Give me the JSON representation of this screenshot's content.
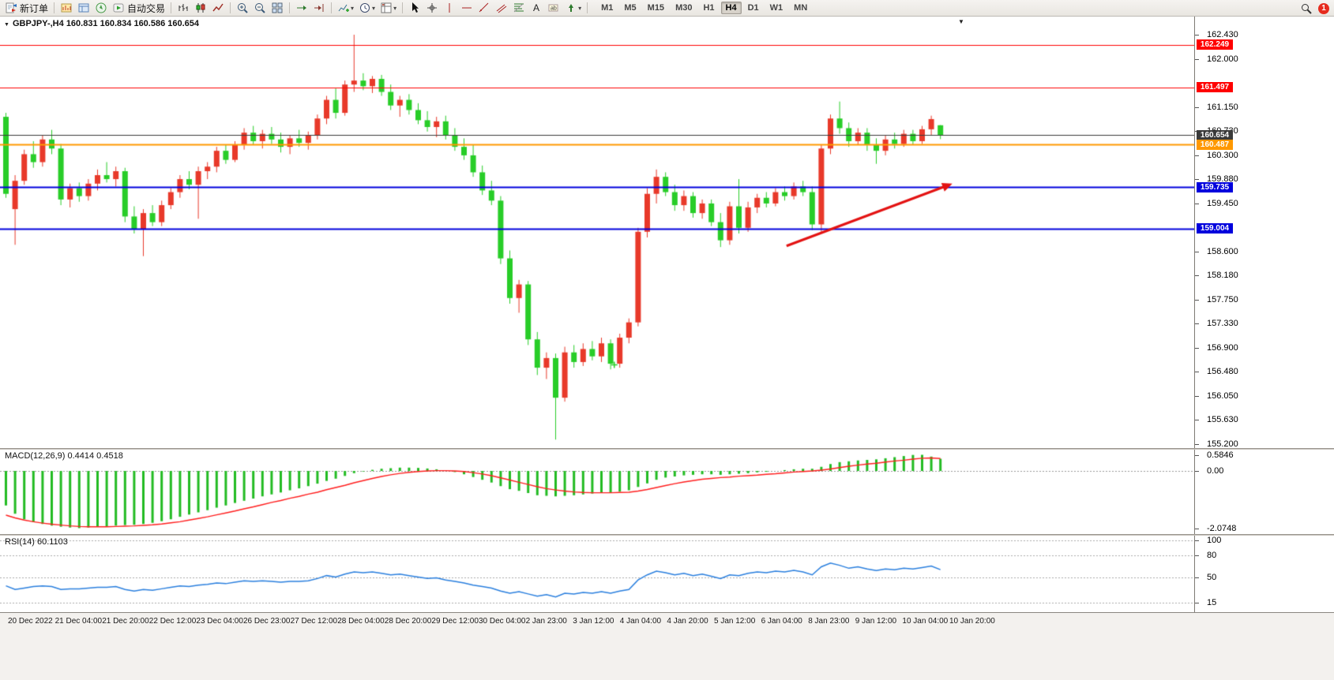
{
  "toolbar": {
    "new_order_label": "新订单",
    "auto_trading_label": "自动交易",
    "timeframes": [
      "M1",
      "M5",
      "M15",
      "M30",
      "H1",
      "H4",
      "D1",
      "W1",
      "MN"
    ],
    "active_timeframe": "H4",
    "notification_count": "1"
  },
  "chart_header": {
    "symbol_period": "GBPJPY-,H4",
    "ohlc": "160.831 160.834 160.586 160.654"
  },
  "indicators": {
    "macd_label": "MACD(12,26,9) 0.4414 0.4518",
    "rsi_label": "RSI(14) 60.1103"
  },
  "price_axis": {
    "ticks": [
      162.43,
      162.0,
      161.15,
      160.73,
      160.3,
      159.88,
      159.45,
      158.6,
      158.18,
      157.75,
      157.33,
      156.9,
      156.48,
      156.05,
      155.63,
      155.2
    ]
  },
  "time_axis": [
    "20 Dec 2022",
    "21 Dec 04:00",
    "21 Dec 20:00",
    "22 Dec 12:00",
    "23 Dec 04:00",
    "26 Dec 23:00",
    "27 Dec 12:00",
    "28 Dec 04:00",
    "28 Dec 20:00",
    "29 Dec 12:00",
    "30 Dec 04:00",
    "2 Jan 23:00",
    "3 Jan 12:00",
    "4 Jan 04:00",
    "4 Jan 20:00",
    "5 Jan 12:00",
    "6 Jan 04:00",
    "8 Jan 23:00",
    "9 Jan 12:00",
    "10 Jan 04:00",
    "10 Jan 20:00"
  ],
  "chart_data": [
    {
      "type": "candlestick",
      "title": "GBPJPY- H4",
      "symbol": "GBPJPY-",
      "period": "H4",
      "current_bar": {
        "open": 160.831,
        "high": 160.834,
        "low": 160.586,
        "close": 160.654
      },
      "ylim": [
        155.2,
        162.43
      ],
      "bull_color": "#e8392a",
      "bear_color": "#28cd28",
      "candles": [
        [
          160.98,
          161.05,
          159.55,
          159.62
        ],
        [
          159.35,
          159.95,
          158.72,
          159.85
        ],
        [
          159.85,
          160.4,
          159.78,
          160.32
        ],
        [
          160.32,
          160.55,
          160.08,
          160.18
        ],
        [
          160.18,
          160.65,
          160.1,
          160.58
        ],
        [
          160.58,
          160.75,
          160.32,
          160.42
        ],
        [
          160.42,
          160.5,
          159.42,
          159.52
        ],
        [
          159.52,
          159.8,
          159.38,
          159.72
        ],
        [
          159.72,
          159.82,
          159.48,
          159.58
        ],
        [
          159.58,
          159.88,
          159.5,
          159.8
        ],
        [
          159.8,
          160.05,
          159.68,
          159.95
        ],
        [
          159.95,
          160.18,
          159.82,
          159.88
        ],
        [
          159.88,
          160.1,
          159.75,
          160.02
        ],
        [
          160.02,
          160.08,
          159.12,
          159.22
        ],
        [
          159.22,
          159.4,
          158.92,
          159.0
        ],
        [
          159.0,
          159.35,
          158.52,
          159.28
        ],
        [
          159.28,
          159.42,
          159.05,
          159.12
        ],
        [
          159.12,
          159.5,
          159.05,
          159.42
        ],
        [
          159.42,
          159.72,
          159.35,
          159.65
        ],
        [
          159.65,
          159.95,
          159.55,
          159.88
        ],
        [
          159.88,
          160.02,
          159.7,
          159.78
        ],
        [
          159.78,
          160.1,
          159.18,
          160.02
        ],
        [
          160.02,
          160.18,
          159.88,
          160.1
        ],
        [
          160.1,
          160.45,
          160.0,
          160.38
        ],
        [
          160.38,
          160.48,
          160.15,
          160.22
        ],
        [
          160.22,
          160.55,
          160.18,
          160.48
        ],
        [
          160.48,
          160.78,
          160.4,
          160.7
        ],
        [
          160.7,
          160.82,
          160.48,
          160.55
        ],
        [
          160.55,
          160.75,
          160.42,
          160.68
        ],
        [
          160.68,
          160.8,
          160.5,
          160.58
        ],
        [
          160.58,
          160.7,
          160.35,
          160.45
        ],
        [
          160.45,
          160.65,
          160.32,
          160.6
        ],
        [
          160.6,
          160.75,
          160.45,
          160.52
        ],
        [
          160.52,
          160.72,
          160.4,
          160.65
        ],
        [
          160.65,
          161.02,
          160.58,
          160.95
        ],
        [
          160.95,
          161.35,
          160.85,
          161.28
        ],
        [
          161.28,
          161.48,
          160.95,
          161.05
        ],
        [
          161.05,
          161.62,
          161.0,
          161.55
        ],
        [
          161.55,
          162.43,
          161.42,
          161.62
        ],
        [
          161.62,
          161.75,
          161.45,
          161.52
        ],
        [
          161.52,
          161.7,
          161.4,
          161.65
        ],
        [
          161.65,
          161.72,
          161.35,
          161.42
        ],
        [
          161.42,
          161.55,
          161.1,
          161.18
        ],
        [
          161.18,
          161.35,
          160.98,
          161.28
        ],
        [
          161.28,
          161.38,
          161.02,
          161.1
        ],
        [
          161.1,
          161.22,
          160.85,
          160.92
        ],
        [
          160.92,
          161.08,
          160.72,
          160.8
        ],
        [
          160.8,
          160.98,
          160.62,
          160.9
        ],
        [
          160.9,
          161.0,
          160.58,
          160.65
        ],
        [
          160.65,
          160.78,
          160.38,
          160.45
        ],
        [
          160.45,
          160.6,
          160.22,
          160.3
        ],
        [
          160.3,
          160.48,
          159.92,
          160.0
        ],
        [
          160.0,
          160.12,
          159.6,
          159.68
        ],
        [
          159.68,
          159.85,
          159.42,
          159.5
        ],
        [
          159.5,
          159.58,
          158.38,
          158.48
        ],
        [
          158.48,
          158.62,
          157.68,
          157.78
        ],
        [
          157.78,
          158.1,
          157.52,
          158.02
        ],
        [
          158.02,
          158.08,
          156.95,
          157.05
        ],
        [
          157.05,
          157.18,
          156.42,
          156.55
        ],
        [
          156.55,
          156.82,
          156.35,
          156.72
        ],
        [
          156.72,
          156.8,
          155.28,
          156.02
        ],
        [
          156.02,
          156.92,
          155.95,
          156.82
        ],
        [
          156.82,
          156.95,
          156.55,
          156.65
        ],
        [
          156.65,
          156.98,
          156.58,
          156.88
        ],
        [
          156.88,
          157.02,
          156.68,
          156.75
        ],
        [
          156.75,
          157.08,
          156.65,
          156.98
        ],
        [
          156.98,
          157.05,
          156.52,
          156.62
        ],
        [
          156.62,
          157.15,
          156.55,
          157.08
        ],
        [
          157.08,
          157.42,
          156.98,
          157.35
        ],
        [
          157.35,
          159.02,
          157.28,
          158.95
        ],
        [
          158.95,
          159.72,
          158.85,
          159.62
        ],
        [
          159.62,
          160.05,
          159.45,
          159.92
        ],
        [
          159.92,
          160.0,
          159.58,
          159.65
        ],
        [
          159.65,
          159.78,
          159.32,
          159.42
        ],
        [
          159.42,
          159.68,
          159.32,
          159.58
        ],
        [
          159.58,
          159.65,
          159.2,
          159.28
        ],
        [
          159.28,
          159.52,
          159.18,
          159.45
        ],
        [
          159.45,
          159.52,
          159.05,
          159.12
        ],
        [
          159.12,
          159.28,
          158.68,
          158.8
        ],
        [
          158.8,
          159.48,
          158.72,
          159.4
        ],
        [
          159.4,
          159.88,
          158.92,
          159.02
        ],
        [
          159.02,
          159.48,
          158.95,
          159.38
        ],
        [
          159.38,
          159.62,
          159.28,
          159.55
        ],
        [
          159.55,
          159.65,
          159.38,
          159.45
        ],
        [
          159.45,
          159.72,
          159.4,
          159.65
        ],
        [
          159.65,
          159.75,
          159.5,
          159.58
        ],
        [
          159.58,
          159.82,
          159.52,
          159.75
        ],
        [
          159.75,
          159.85,
          159.58,
          159.65
        ],
        [
          159.65,
          159.75,
          158.98,
          159.08
        ],
        [
          159.08,
          160.48,
          158.95,
          160.42
        ],
        [
          160.42,
          161.02,
          160.32,
          160.95
        ],
        [
          160.95,
          161.25,
          160.68,
          160.78
        ],
        [
          160.78,
          160.88,
          160.45,
          160.55
        ],
        [
          160.55,
          160.78,
          160.48,
          160.7
        ],
        [
          160.7,
          160.78,
          160.38,
          160.48
        ],
        [
          160.48,
          160.6,
          160.15,
          160.38
        ],
        [
          160.38,
          160.65,
          160.3,
          160.58
        ],
        [
          160.58,
          160.7,
          160.42,
          160.5
        ],
        [
          160.5,
          160.75,
          160.45,
          160.68
        ],
        [
          160.68,
          160.75,
          160.48,
          160.55
        ],
        [
          160.55,
          160.82,
          160.5,
          160.76
        ],
        [
          160.76,
          161.0,
          160.65,
          160.94
        ],
        [
          160.831,
          160.834,
          160.586,
          160.654
        ]
      ],
      "hlines": [
        {
          "price": 162.249,
          "color": "#ff0000",
          "width": 1,
          "badge": "162.249",
          "badge_bg": "#ff0000"
        },
        {
          "price": 161.497,
          "color": "#ff0000",
          "width": 1,
          "badge": "161.497",
          "badge_bg": "#ff0000"
        },
        {
          "price": 160.654,
          "color": "#3a3a3a",
          "width": 1,
          "badge": "160.654",
          "badge_bg": "#3a3a3a"
        },
        {
          "price": 160.487,
          "color": "#ff9800",
          "width": 2,
          "badge": "160.487",
          "badge_bg": "#ff9800"
        },
        {
          "price": 159.735,
          "color": "#0000dd",
          "width": 2,
          "badge": "159.735",
          "badge_bg": "#0000dd"
        },
        {
          "price": 159.004,
          "color": "#0000dd",
          "width": 2,
          "badge": "159.004",
          "badge_bg": "#0000dd"
        }
      ],
      "trend_arrow": {
        "from_bar": 85.2,
        "from_price": 158.7,
        "to_bar": 103.3,
        "to_price": 159.8,
        "color": "#e31212"
      },
      "plus_marker": {
        "bar": 66.4,
        "price": 156.6,
        "color": "#28cd28"
      }
    },
    {
      "type": "bar",
      "name": "MACD",
      "params": "12,26,9",
      "value_main": 0.4414,
      "value_signal": 0.4518,
      "ylim": [
        -2.28,
        0.77
      ],
      "y_ticks": [
        "0.5846",
        "0.00",
        "-2.0748"
      ],
      "y_tick_values": [
        0.5846,
        0.0,
        -2.0748
      ],
      "histogram_color": "#22bb22",
      "signal_color": "#ff1e1e",
      "values": [
        -1.25,
        -1.55,
        -1.75,
        -1.85,
        -1.92,
        -1.98,
        -2.02,
        -2.05,
        -2.07,
        -2.05,
        -2.02,
        -2.0,
        -1.98,
        -1.96,
        -1.95,
        -1.92,
        -1.88,
        -1.82,
        -1.75,
        -1.66,
        -1.58,
        -1.5,
        -1.42,
        -1.33,
        -1.25,
        -1.16,
        -1.08,
        -1.0,
        -0.92,
        -0.85,
        -0.78,
        -0.7,
        -0.63,
        -0.55,
        -0.46,
        -0.36,
        -0.28,
        -0.18,
        -0.08,
        -0.02,
        0.04,
        0.08,
        0.1,
        0.12,
        0.12,
        0.11,
        0.09,
        0.06,
        0.02,
        -0.04,
        -0.12,
        -0.22,
        -0.32,
        -0.42,
        -0.55,
        -0.66,
        -0.72,
        -0.8,
        -0.88,
        -0.9,
        -0.92,
        -0.9,
        -0.88,
        -0.85,
        -0.82,
        -0.8,
        -0.78,
        -0.75,
        -0.7,
        -0.58,
        -0.45,
        -0.32,
        -0.24,
        -0.2,
        -0.16,
        -0.14,
        -0.12,
        -0.12,
        -0.14,
        -0.12,
        -0.1,
        -0.08,
        -0.05,
        -0.03,
        0.0,
        0.03,
        0.06,
        0.08,
        0.08,
        0.15,
        0.25,
        0.32,
        0.35,
        0.38,
        0.4,
        0.42,
        0.46,
        0.5,
        0.54,
        0.58,
        0.5846,
        0.52,
        0.4414
      ],
      "signal": [
        -1.6,
        -1.7,
        -1.78,
        -1.84,
        -1.89,
        -1.93,
        -1.96,
        -1.99,
        -2.01,
        -2.02,
        -2.02,
        -2.02,
        -2.01,
        -2.0,
        -1.99,
        -1.97,
        -1.95,
        -1.92,
        -1.88,
        -1.84,
        -1.78,
        -1.72,
        -1.66,
        -1.59,
        -1.52,
        -1.45,
        -1.37,
        -1.3,
        -1.22,
        -1.14,
        -1.07,
        -0.99,
        -0.92,
        -0.84,
        -0.77,
        -0.68,
        -0.6,
        -0.52,
        -0.43,
        -0.35,
        -0.27,
        -0.2,
        -0.14,
        -0.09,
        -0.05,
        -0.02,
        0.0,
        0.01,
        0.01,
        0.0,
        -0.02,
        -0.06,
        -0.11,
        -0.17,
        -0.25,
        -0.33,
        -0.41,
        -0.49,
        -0.57,
        -0.64,
        -0.69,
        -0.73,
        -0.76,
        -0.78,
        -0.79,
        -0.79,
        -0.79,
        -0.78,
        -0.77,
        -0.73,
        -0.67,
        -0.6,
        -0.53,
        -0.46,
        -0.4,
        -0.35,
        -0.3,
        -0.27,
        -0.24,
        -0.22,
        -0.19,
        -0.17,
        -0.15,
        -0.12,
        -0.1,
        -0.07,
        -0.04,
        -0.02,
        0.0,
        0.03,
        0.07,
        0.12,
        0.17,
        0.21,
        0.25,
        0.28,
        0.32,
        0.36,
        0.39,
        0.43,
        0.46,
        0.47,
        0.4518
      ]
    },
    {
      "type": "line",
      "name": "RSI",
      "params": "14",
      "value": 60.1103,
      "ylim": [
        0,
        100
      ],
      "y_ticks": [
        "100",
        "80",
        "50",
        "15"
      ],
      "y_tick_values": [
        100,
        80,
        50,
        15
      ],
      "line_color": "#2a7fde",
      "values": [
        38,
        33,
        35,
        37,
        38,
        37,
        33,
        34,
        34,
        35,
        36,
        36,
        37,
        33,
        31,
        33,
        32,
        34,
        36,
        38,
        37,
        39,
        40,
        42,
        41,
        43,
        45,
        44,
        45,
        44,
        43,
        44,
        44,
        45,
        48,
        52,
        50,
        54,
        57,
        56,
        57,
        55,
        53,
        54,
        52,
        50,
        48,
        49,
        46,
        44,
        42,
        39,
        37,
        35,
        31,
        28,
        30,
        27,
        24,
        26,
        23,
        28,
        27,
        29,
        28,
        30,
        28,
        31,
        33,
        46,
        53,
        58,
        56,
        53,
        55,
        52,
        54,
        51,
        48,
        53,
        52,
        55,
        57,
        56,
        58,
        57,
        59,
        57,
        53,
        64,
        69,
        66,
        62,
        64,
        61,
        59,
        61,
        60,
        62,
        61,
        63,
        65,
        60.11
      ]
    }
  ]
}
